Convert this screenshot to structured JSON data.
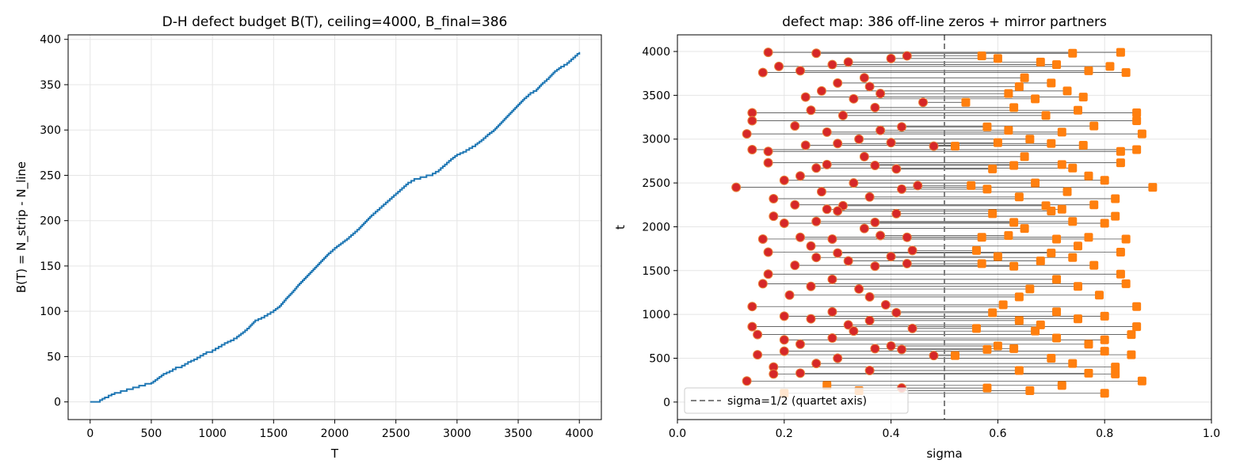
{
  "chart_data": [
    {
      "type": "line",
      "title": "D-H defect budget B(T), ceiling=4000, B_final=386",
      "xlabel": "T",
      "ylabel": "B(T) = N_strip - N_line",
      "xlim": [
        -180,
        4180
      ],
      "ylim": [
        -19.5,
        405
      ],
      "xticks": [
        0,
        500,
        1000,
        1500,
        2000,
        2500,
        3000,
        3500,
        4000
      ],
      "yticks": [
        0,
        50,
        100,
        150,
        200,
        250,
        300,
        350,
        400
      ],
      "grid": true,
      "line_color": "#1f77b4",
      "series": [
        {
          "x": [
            0,
            60,
            80,
            120,
            150,
            200,
            250,
            300,
            350,
            400,
            450,
            500,
            550,
            600,
            650,
            700,
            750,
            800,
            850,
            900,
            950,
            1000,
            1050,
            1100,
            1150,
            1200,
            1250,
            1300,
            1350,
            1400,
            1450,
            1500,
            1550,
            1600,
            1650,
            1700,
            1750,
            1800,
            1850,
            1900,
            1950,
            2000,
            2050,
            2100,
            2150,
            2200,
            2250,
            2300,
            2350,
            2400,
            2450,
            2500,
            2550,
            2600,
            2650,
            2700,
            2750,
            2800,
            2850,
            2900,
            2950,
            3000,
            3050,
            3100,
            3150,
            3200,
            3250,
            3300,
            3350,
            3400,
            3450,
            3500,
            3550,
            3600,
            3650,
            3700,
            3750,
            3800,
            3850,
            3900,
            3950,
            4000
          ],
          "values": [
            0,
            0,
            2,
            5,
            7,
            10,
            12,
            14,
            16,
            18,
            20,
            21,
            26,
            31,
            34,
            38,
            40,
            44,
            47,
            51,
            55,
            57,
            61,
            65,
            68,
            72,
            77,
            83,
            90,
            93,
            97,
            101,
            106,
            114,
            121,
            129,
            136,
            143,
            150,
            157,
            164,
            170,
            175,
            180,
            186,
            192,
            199,
            206,
            212,
            218,
            224,
            230,
            236,
            242,
            246,
            248,
            250,
            252,
            256,
            262,
            268,
            273,
            276,
            280,
            284,
            289,
            295,
            300,
            307,
            314,
            321,
            328,
            335,
            341,
            345,
            352,
            358,
            365,
            370,
            374,
            380,
            386
          ]
        }
      ]
    },
    {
      "type": "scatter",
      "title": "defect map: 386 off-line zeros + mirror partners",
      "xlabel": "sigma",
      "ylabel": "t",
      "xlim": [
        0.0,
        1.0
      ],
      "ylim": [
        -200,
        4190
      ],
      "xticks": [
        0.0,
        0.2,
        0.4,
        0.6,
        0.8,
        1.0
      ],
      "xtick_labels": [
        "0.0",
        "0.2",
        "0.4",
        "0.6",
        "0.8",
        "1.0"
      ],
      "yticks": [
        0,
        500,
        1000,
        1500,
        2000,
        2500,
        3000,
        3500,
        4000
      ],
      "grid": true,
      "legend": {
        "position": "lower-left",
        "label": "sigma=1/2 (quartet axis)"
      },
      "axis_line": {
        "x": 0.5,
        "color": "#808080"
      },
      "colors": {
        "offline": "#d62728",
        "mirror": "#ff7f0e",
        "connector": "#333333"
      },
      "defects": [
        {
          "sigma": 0.17,
          "t": 3990
        },
        {
          "sigma": 0.26,
          "t": 3980
        },
        {
          "sigma": 0.19,
          "t": 3830
        },
        {
          "sigma": 0.16,
          "t": 3760
        },
        {
          "sigma": 0.23,
          "t": 3780
        },
        {
          "sigma": 0.29,
          "t": 3850
        },
        {
          "sigma": 0.32,
          "t": 3880
        },
        {
          "sigma": 0.35,
          "t": 3700
        },
        {
          "sigma": 0.4,
          "t": 3920
        },
        {
          "sigma": 0.43,
          "t": 3950
        },
        {
          "sigma": 0.36,
          "t": 3600
        },
        {
          "sigma": 0.3,
          "t": 3640
        },
        {
          "sigma": 0.24,
          "t": 3480
        },
        {
          "sigma": 0.27,
          "t": 3550
        },
        {
          "sigma": 0.33,
          "t": 3460
        },
        {
          "sigma": 0.38,
          "t": 3520
        },
        {
          "sigma": 0.46,
          "t": 3420
        },
        {
          "sigma": 0.14,
          "t": 3300
        },
        {
          "sigma": 0.14,
          "t": 3210
        },
        {
          "sigma": 0.25,
          "t": 3330
        },
        {
          "sigma": 0.31,
          "t": 3270
        },
        {
          "sigma": 0.37,
          "t": 3360
        },
        {
          "sigma": 0.13,
          "t": 3060
        },
        {
          "sigma": 0.22,
          "t": 3150
        },
        {
          "sigma": 0.28,
          "t": 3080
        },
        {
          "sigma": 0.34,
          "t": 3000
        },
        {
          "sigma": 0.38,
          "t": 3100
        },
        {
          "sigma": 0.42,
          "t": 3140
        },
        {
          "sigma": 0.14,
          "t": 2880
        },
        {
          "sigma": 0.17,
          "t": 2860
        },
        {
          "sigma": 0.24,
          "t": 2930
        },
        {
          "sigma": 0.3,
          "t": 2950
        },
        {
          "sigma": 0.4,
          "t": 2960
        },
        {
          "sigma": 0.48,
          "t": 2920
        },
        {
          "sigma": 0.17,
          "t": 2730
        },
        {
          "sigma": 0.26,
          "t": 2670
        },
        {
          "sigma": 0.28,
          "t": 2710
        },
        {
          "sigma": 0.35,
          "t": 2800
        },
        {
          "sigma": 0.37,
          "t": 2700
        },
        {
          "sigma": 0.41,
          "t": 2660
        },
        {
          "sigma": 0.11,
          "t": 2450
        },
        {
          "sigma": 0.2,
          "t": 2530
        },
        {
          "sigma": 0.23,
          "t": 2580
        },
        {
          "sigma": 0.27,
          "t": 2400
        },
        {
          "sigma": 0.33,
          "t": 2500
        },
        {
          "sigma": 0.36,
          "t": 2340
        },
        {
          "sigma": 0.42,
          "t": 2430
        },
        {
          "sigma": 0.45,
          "t": 2470
        },
        {
          "sigma": 0.18,
          "t": 2320
        },
        {
          "sigma": 0.22,
          "t": 2250
        },
        {
          "sigma": 0.28,
          "t": 2200
        },
        {
          "sigma": 0.31,
          "t": 2240
        },
        {
          "sigma": 0.18,
          "t": 2120
        },
        {
          "sigma": 0.2,
          "t": 2040
        },
        {
          "sigma": 0.26,
          "t": 2060
        },
        {
          "sigma": 0.3,
          "t": 2180
        },
        {
          "sigma": 0.37,
          "t": 2050
        },
        {
          "sigma": 0.41,
          "t": 2150
        },
        {
          "sigma": 0.16,
          "t": 1860
        },
        {
          "sigma": 0.17,
          "t": 1710
        },
        {
          "sigma": 0.23,
          "t": 1880
        },
        {
          "sigma": 0.25,
          "t": 1780
        },
        {
          "sigma": 0.29,
          "t": 1860
        },
        {
          "sigma": 0.35,
          "t": 1980
        },
        {
          "sigma": 0.38,
          "t": 1900
        },
        {
          "sigma": 0.43,
          "t": 1880
        },
        {
          "sigma": 0.22,
          "t": 1560
        },
        {
          "sigma": 0.26,
          "t": 1650
        },
        {
          "sigma": 0.3,
          "t": 1700
        },
        {
          "sigma": 0.32,
          "t": 1610
        },
        {
          "sigma": 0.37,
          "t": 1550
        },
        {
          "sigma": 0.4,
          "t": 1660
        },
        {
          "sigma": 0.43,
          "t": 1580
        },
        {
          "sigma": 0.44,
          "t": 1730
        },
        {
          "sigma": 0.17,
          "t": 1460
        },
        {
          "sigma": 0.16,
          "t": 1350
        },
        {
          "sigma": 0.21,
          "t": 1220
        },
        {
          "sigma": 0.25,
          "t": 1320
        },
        {
          "sigma": 0.29,
          "t": 1400
        },
        {
          "sigma": 0.34,
          "t": 1290
        },
        {
          "sigma": 0.36,
          "t": 1200
        },
        {
          "sigma": 0.39,
          "t": 1110
        },
        {
          "sigma": 0.14,
          "t": 1090
        },
        {
          "sigma": 0.2,
          "t": 980
        },
        {
          "sigma": 0.25,
          "t": 950
        },
        {
          "sigma": 0.29,
          "t": 1030
        },
        {
          "sigma": 0.32,
          "t": 880
        },
        {
          "sigma": 0.36,
          "t": 930
        },
        {
          "sigma": 0.41,
          "t": 1020
        },
        {
          "sigma": 0.14,
          "t": 860
        },
        {
          "sigma": 0.15,
          "t": 770
        },
        {
          "sigma": 0.2,
          "t": 710
        },
        {
          "sigma": 0.23,
          "t": 660
        },
        {
          "sigma": 0.29,
          "t": 730
        },
        {
          "sigma": 0.33,
          "t": 810
        },
        {
          "sigma": 0.37,
          "t": 610
        },
        {
          "sigma": 0.4,
          "t": 640
        },
        {
          "sigma": 0.44,
          "t": 840
        },
        {
          "sigma": 0.15,
          "t": 540
        },
        {
          "sigma": 0.2,
          "t": 580
        },
        {
          "sigma": 0.26,
          "t": 440
        },
        {
          "sigma": 0.3,
          "t": 500
        },
        {
          "sigma": 0.36,
          "t": 360
        },
        {
          "sigma": 0.42,
          "t": 600
        },
        {
          "sigma": 0.48,
          "t": 530
        },
        {
          "sigma": 0.18,
          "t": 400
        },
        {
          "sigma": 0.18,
          "t": 320
        },
        {
          "sigma": 0.23,
          "t": 330
        },
        {
          "sigma": 0.13,
          "t": 240
        },
        {
          "sigma": 0.42,
          "t": 160
        }
      ],
      "mirror_only": [
        {
          "sigma": 0.28,
          "t": 190
        },
        {
          "sigma": 0.34,
          "t": 130
        },
        {
          "sigma": 0.2,
          "t": 100
        }
      ]
    }
  ]
}
